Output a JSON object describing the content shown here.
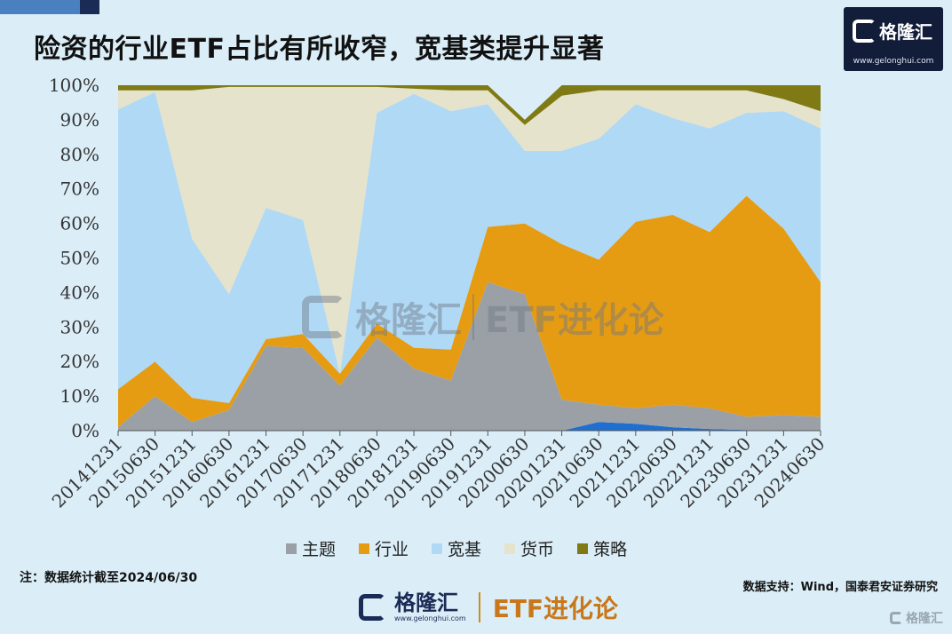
{
  "header": {
    "title": "险资的行业ETF占比有所收窄，宽基类提升显著",
    "logo_name": "格隆汇",
    "logo_url": "www.gelonghui.com"
  },
  "chart_data": {
    "type": "area",
    "stacked": true,
    "categories": [
      "20141231",
      "20150630",
      "20151231",
      "20160630",
      "20161231",
      "20170630",
      "20171231",
      "20180630",
      "20181231",
      "20190630",
      "20191231",
      "20200630",
      "20201231",
      "20210630",
      "20211231",
      "20220630",
      "20221231",
      "20230630",
      "20231231",
      "20240630"
    ],
    "y_ticks": [
      "0%",
      "10%",
      "20%",
      "30%",
      "40%",
      "50%",
      "60%",
      "70%",
      "80%",
      "90%",
      "100%"
    ],
    "ylim": [
      0,
      100
    ],
    "series": [
      {
        "name": "",
        "color": "#1f6fd0",
        "values": [
          0,
          0,
          0,
          0,
          0,
          0,
          0,
          0,
          0,
          0,
          0,
          0,
          0,
          2.5,
          2,
          1,
          0.5,
          0.2,
          0,
          0
        ]
      },
      {
        "name": "主题",
        "color": "#9aa0a6",
        "values": [
          1,
          10,
          2.5,
          6,
          24.5,
          24,
          13,
          27,
          18,
          14.5,
          43,
          39.5,
          9,
          5,
          4.5,
          6.5,
          6,
          3.8,
          4.5,
          4
        ]
      },
      {
        "name": "行业",
        "color": "#e69c12",
        "values": [
          11,
          10,
          7,
          2,
          2,
          4,
          3.5,
          4,
          6,
          9,
          16,
          20.5,
          45,
          42,
          54,
          55,
          51,
          64,
          54,
          39
        ]
      },
      {
        "name": "宽基",
        "color": "#b0d9f6",
        "values": [
          81,
          78,
          46,
          31.5,
          38,
          33,
          0,
          61,
          73.5,
          69,
          35.5,
          21,
          27,
          35,
          34,
          28,
          30,
          24,
          34,
          44.5
        ]
      },
      {
        "name": "货币",
        "color": "#e5e3cb",
        "values": [
          5.5,
          0.5,
          43,
          60,
          35,
          38.5,
          83,
          7.5,
          1.5,
          6,
          4,
          7.5,
          16,
          14,
          4,
          8,
          11,
          6.5,
          3.5,
          5
        ]
      },
      {
        "name": "策略",
        "color": "#7f7a14",
        "values": [
          1.5,
          1.5,
          1.5,
          0.5,
          0.5,
          0.5,
          0.5,
          0.5,
          1,
          1.5,
          1.5,
          1.5,
          3,
          1.5,
          1.5,
          1.5,
          1.5,
          1.5,
          4,
          7.5
        ]
      }
    ]
  },
  "watermark": {
    "name": "格隆汇",
    "url": "www.gelonghui.com",
    "column": "ETF进化论"
  },
  "footer": {
    "note": "注：数据统计截至2024/06/30",
    "source": "数据支持：Wind，国泰君安证券研究",
    "brand_name": "格隆汇",
    "brand_url": "www.gelonghui.com",
    "column": "ETF进化论",
    "corner_name": "格隆汇"
  }
}
